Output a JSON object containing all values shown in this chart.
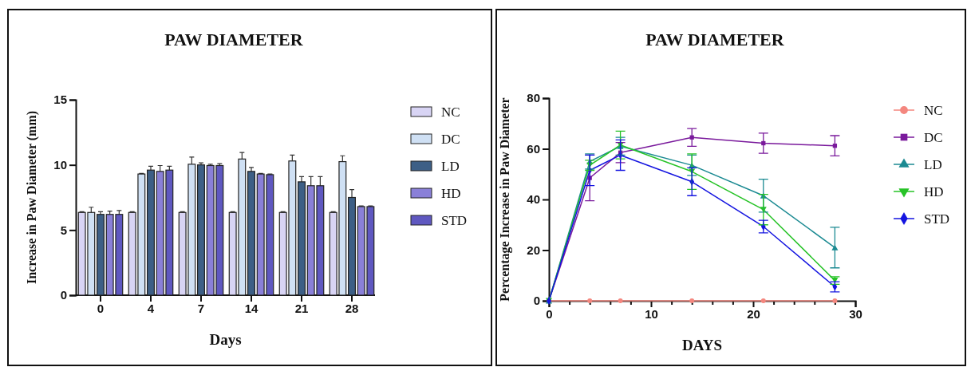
{
  "chart_data": [
    {
      "type": "bar",
      "title": "PAW DIAMETER",
      "xlabel": "Days",
      "ylabel": "Increase in Paw Diameter (mm)",
      "categories": [
        "0",
        "4",
        "7",
        "14",
        "21",
        "28"
      ],
      "ylim": [
        0,
        15
      ],
      "yticks": [
        0,
        5,
        10,
        15
      ],
      "legend": "right",
      "grid": false,
      "series": [
        {
          "name": "NC",
          "color": "#d8d4f4",
          "values": [
            6.35,
            6.35,
            6.35,
            6.35,
            6.35,
            6.35
          ],
          "errors": [
            0.05,
            0.05,
            0.05,
            0.05,
            0.05,
            0.05
          ]
        },
        {
          "name": "DC",
          "color": "#cfe0f4",
          "values": [
            6.35,
            9.3,
            10.05,
            10.45,
            10.3,
            10.25
          ],
          "errors": [
            0.4,
            0.05,
            0.55,
            0.5,
            0.45,
            0.45
          ]
        },
        {
          "name": "LD",
          "color": "#3d5f86",
          "values": [
            6.2,
            9.6,
            10.0,
            9.5,
            8.7,
            7.5
          ],
          "errors": [
            0.2,
            0.3,
            0.15,
            0.3,
            0.4,
            0.6
          ]
        },
        {
          "name": "HD",
          "color": "#8a80d8",
          "values": [
            6.2,
            9.5,
            9.95,
            9.3,
            8.4,
            6.8
          ],
          "errors": [
            0.25,
            0.45,
            0.1,
            0.05,
            0.7,
            0.05
          ]
        },
        {
          "name": "STD",
          "color": "#5f58c0",
          "values": [
            6.2,
            9.6,
            9.95,
            9.25,
            8.4,
            6.8
          ],
          "errors": [
            0.3,
            0.3,
            0.15,
            0.05,
            0.7,
            0.05
          ]
        }
      ]
    },
    {
      "type": "line",
      "title": "PAW DIAMETER",
      "xlabel": "DAYS",
      "ylabel": "Percentage Increase in Paw Diameter",
      "x": [
        0,
        4,
        7,
        14,
        21,
        28
      ],
      "xlim": [
        0,
        30
      ],
      "xticks": [
        0,
        {
          "value": 2,
          "label": null
        },
        {
          "value": 4,
          "label": null
        },
        {
          "value": 6,
          "label": null
        },
        {
          "value": 8,
          "label": null
        },
        10,
        {
          "value": 12,
          "label": null
        },
        {
          "value": 14,
          "label": null
        },
        {
          "value": 16,
          "label": null
        },
        {
          "value": 18,
          "label": null
        },
        20,
        {
          "value": 22,
          "label": null
        },
        {
          "value": 24,
          "label": null
        },
        {
          "value": 26,
          "label": null
        },
        {
          "value": 28,
          "label": null
        },
        30
      ],
      "ylim": [
        0,
        80
      ],
      "yticks": [
        0,
        20,
        40,
        60,
        80
      ],
      "legend": "right",
      "grid": false,
      "line_style": "solid",
      "series": [
        {
          "name": "NC",
          "color": "#f4877f",
          "marker": "circle",
          "values": [
            0,
            0,
            0,
            0,
            0,
            0
          ]
        },
        {
          "name": "DC",
          "color": "#7a1a9c",
          "marker": "square",
          "values": [
            0,
            48.5,
            58.5,
            64.5,
            62.2,
            61.2
          ],
          "errors": [
            null,
            9,
            4,
            3.5,
            4,
            4
          ]
        },
        {
          "name": "LD",
          "color": "#1b8a92",
          "marker": "triangle",
          "values": [
            0,
            55,
            61,
            53.5,
            41.5,
            21
          ],
          "errors": [
            null,
            3,
            3.5,
            4,
            6.5,
            8
          ]
        },
        {
          "name": "HD",
          "color": "#27c327",
          "marker": "triangle-down",
          "values": [
            0,
            53.5,
            61.5,
            51,
            36,
            8
          ],
          "errors": [
            null,
            2,
            5.5,
            7,
            6,
            1.5
          ]
        },
        {
          "name": "STD",
          "color": "#1414e0",
          "marker": "diamond",
          "values": [
            0,
            51.5,
            57.5,
            47,
            29.3,
            5.5
          ],
          "errors": [
            null,
            6,
            6,
            5.5,
            2.5,
            2
          ]
        }
      ]
    }
  ]
}
